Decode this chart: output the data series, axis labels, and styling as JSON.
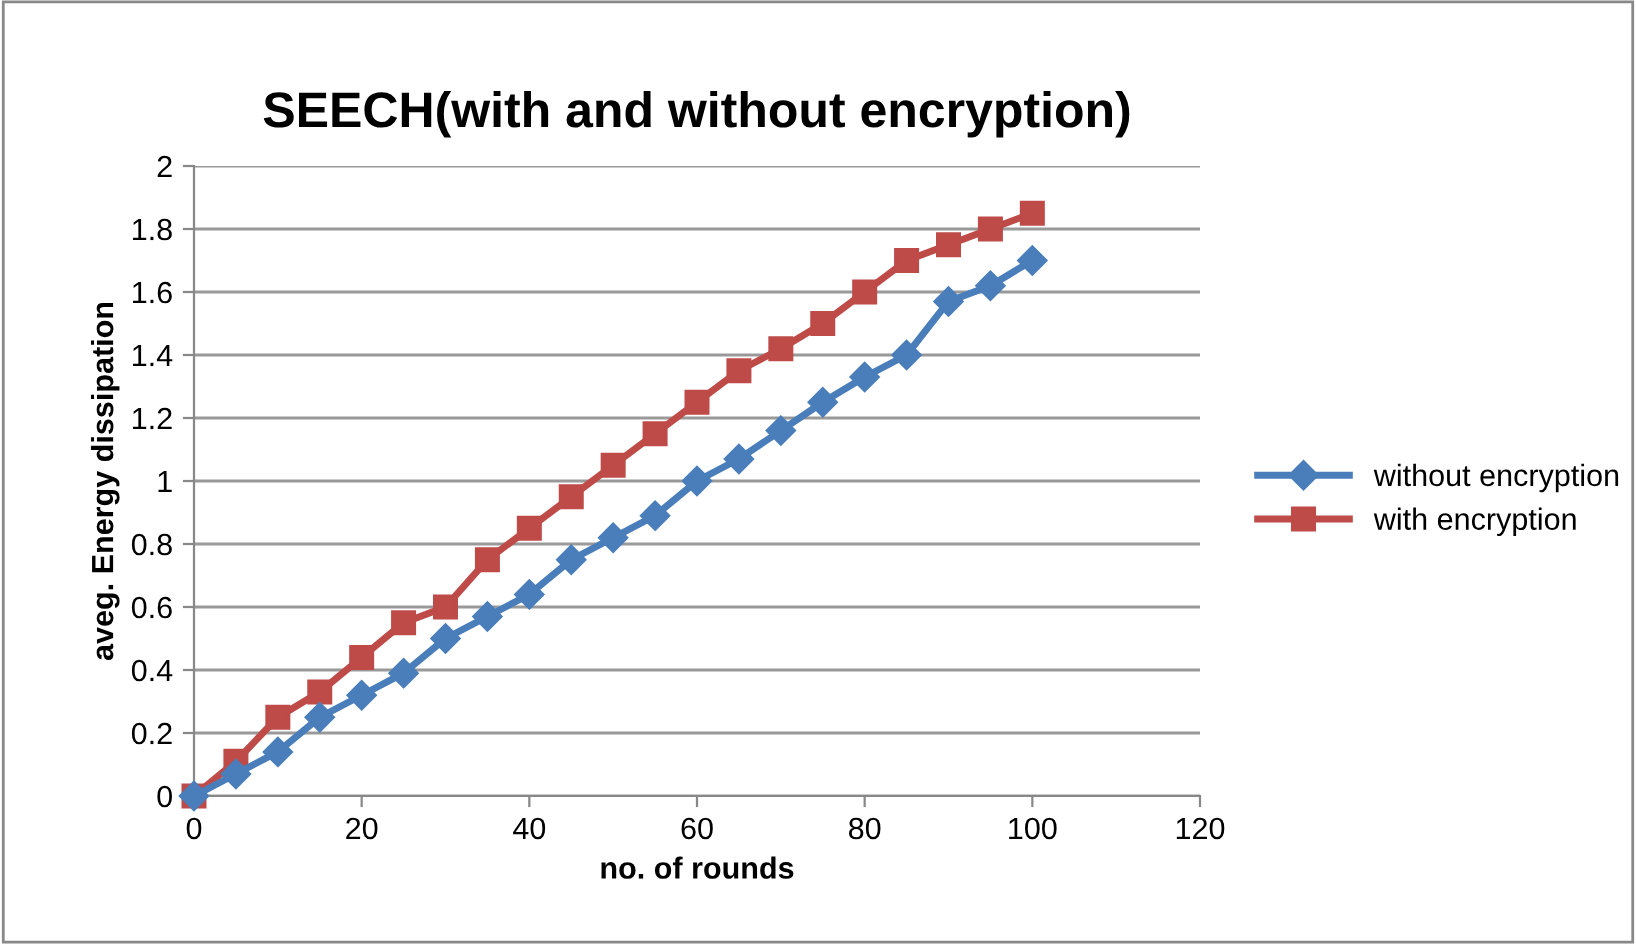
{
  "chart_data": {
    "type": "line",
    "title": "SEECH(with and without encryption)",
    "xlabel": "no. of rounds",
    "ylabel": "aveg. Energy dissipation",
    "x": [
      0,
      5,
      10,
      15,
      20,
      25,
      30,
      35,
      40,
      45,
      50,
      55,
      60,
      65,
      70,
      75,
      80,
      85,
      90,
      95,
      100
    ],
    "series": [
      {
        "name": "without encryption",
        "color": "#4a7ebb",
        "marker": "diamond",
        "values": [
          0,
          0.07,
          0.14,
          0.25,
          0.32,
          0.39,
          0.5,
          0.57,
          0.64,
          0.75,
          0.82,
          0.89,
          1.0,
          1.07,
          1.16,
          1.25,
          1.33,
          1.4,
          1.57,
          1.62,
          1.7
        ]
      },
      {
        "name": "with encryption",
        "color": "#be4b48",
        "marker": "square",
        "values": [
          0,
          0.11,
          0.25,
          0.33,
          0.44,
          0.55,
          0.6,
          0.75,
          0.85,
          0.95,
          1.05,
          1.15,
          1.25,
          1.35,
          1.42,
          1.5,
          1.6,
          1.7,
          1.75,
          1.8,
          1.85
        ]
      }
    ],
    "xlim": [
      0,
      120
    ],
    "xticks": [
      0,
      20,
      40,
      60,
      80,
      100,
      120
    ],
    "ylim": [
      0,
      2
    ],
    "yticks": [
      0,
      0.2,
      0.4,
      0.6,
      0.8,
      1,
      1.2,
      1.4,
      1.6,
      1.8,
      2
    ],
    "grid": "y",
    "legend": "right",
    "line_style": "solid"
  }
}
